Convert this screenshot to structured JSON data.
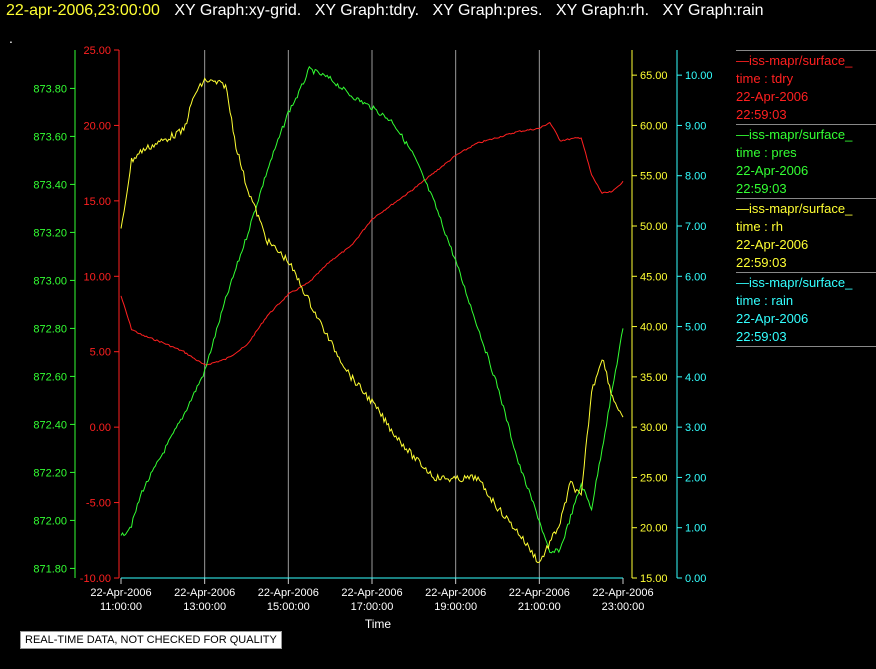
{
  "header": {
    "timestamp": "22-apr-2006,23:00:00",
    "graph_titles": [
      "XY Graph:xy-grid.",
      "XY Graph:tdry.",
      "XY Graph:pres.",
      "XY Graph:rh.",
      "XY Graph:rain"
    ]
  },
  "dot_text": ".",
  "disclaimer": "REAL-TIME DATA, NOT CHECKED FOR QUALITY",
  "legend": [
    {
      "source": "—iss-mapr/surface_",
      "label": "time : tdry",
      "date": "22-Apr-2006",
      "time": "22:59:03",
      "color": "#ff2020"
    },
    {
      "source": "—iss-mapr/surface_",
      "label": "time : pres",
      "date": "22-Apr-2006",
      "time": "22:59:03",
      "color": "#33ff33"
    },
    {
      "source": "—iss-mapr/surface_",
      "label": "time : rh",
      "date": "22-Apr-2006",
      "time": "22:59:03",
      "color": "#ffff33"
    },
    {
      "source": "—iss-mapr/surface_",
      "label": "time : rain",
      "date": "22-Apr-2006",
      "time": "22:59:03",
      "color": "#33ffff"
    }
  ],
  "chart_data": {
    "type": "line",
    "xlabel": "Time",
    "x_ticks": [
      {
        "date": "22-Apr-2006",
        "time": "11:00:00"
      },
      {
        "date": "22-Apr-2006",
        "time": "13:00:00"
      },
      {
        "date": "22-Apr-2006",
        "time": "15:00:00"
      },
      {
        "date": "22-Apr-2006",
        "time": "17:00:00"
      },
      {
        "date": "22-Apr-2006",
        "time": "19:00:00"
      },
      {
        "date": "22-Apr-2006",
        "time": "21:00:00"
      },
      {
        "date": "22-Apr-2006",
        "time": "23:00:00"
      }
    ],
    "xlim": [
      "22-Apr-2006 11:00:00",
      "22-Apr-2006 23:00:00"
    ],
    "grid": "vertical",
    "axes": {
      "pres": {
        "color": "#33ff33",
        "side": "left",
        "ylim": [
          871.76,
          873.96
        ],
        "ticks": [
          "871.80",
          "872.00",
          "872.20",
          "872.40",
          "872.60",
          "872.80",
          "873.00",
          "873.20",
          "873.40",
          "873.60",
          "873.80"
        ]
      },
      "tdry": {
        "color": "#ff2020",
        "side": "left",
        "ylim": [
          -10,
          25
        ],
        "ticks": [
          "-10.00",
          "-5.00",
          "0.00",
          "5.00",
          "10.00",
          "15.00",
          "20.00",
          "25.00"
        ]
      },
      "rh": {
        "color": "#ffff33",
        "side": "right",
        "ylim": [
          15.0,
          67.5
        ],
        "ticks": [
          "15.00",
          "20.00",
          "25.00",
          "30.00",
          "35.00",
          "40.00",
          "45.00",
          "50.00",
          "55.00",
          "60.00",
          "65.00"
        ]
      },
      "rain": {
        "color": "#33ffff",
        "side": "right",
        "ylim": [
          0,
          10.5
        ],
        "ticks": [
          "0.00",
          "1.00",
          "2.00",
          "3.00",
          "4.00",
          "5.00",
          "6.00",
          "7.00",
          "8.00",
          "9.00",
          "10.00"
        ]
      }
    },
    "series": [
      {
        "name": "time : tdry",
        "axis": "tdry",
        "color": "#ff2020",
        "x": [
          "11:00",
          "11:15",
          "11:30",
          "12:00",
          "12:30",
          "13:00",
          "13:30",
          "14:00",
          "14:30",
          "15:00",
          "15:30",
          "16:00",
          "16:30",
          "17:00",
          "17:30",
          "18:00",
          "18:30",
          "19:00",
          "19:30",
          "20:00",
          "20:30",
          "21:00",
          "21:15",
          "21:30",
          "22:00",
          "22:15",
          "22:30",
          "22:45",
          "23:00"
        ],
        "y": [
          8.7,
          6.5,
          6.1,
          5.6,
          5.0,
          4.1,
          4.5,
          5.4,
          7.4,
          8.8,
          9.6,
          11.0,
          12.0,
          13.8,
          14.8,
          15.8,
          16.9,
          18.0,
          18.8,
          19.2,
          19.6,
          19.8,
          20.2,
          19.0,
          19.2,
          16.7,
          15.5,
          15.6,
          16.3
        ]
      },
      {
        "name": "time : pres",
        "axis": "pres",
        "color": "#33ff33",
        "x": [
          "11:00",
          "11:15",
          "11:30",
          "12:00",
          "12:30",
          "13:00",
          "13:30",
          "14:00",
          "14:30",
          "15:00",
          "15:15",
          "15:30",
          "16:00",
          "16:30",
          "17:00",
          "17:30",
          "18:00",
          "18:30",
          "19:00",
          "19:30",
          "20:00",
          "20:30",
          "21:00",
          "21:15",
          "21:30",
          "22:00",
          "22:15",
          "22:30",
          "22:45",
          "23:00"
        ],
        "y": [
          871.93,
          871.98,
          872.12,
          872.28,
          872.44,
          872.62,
          872.92,
          873.18,
          873.46,
          873.7,
          873.78,
          873.88,
          873.84,
          873.77,
          873.72,
          873.66,
          873.52,
          873.32,
          873.08,
          872.82,
          872.56,
          872.24,
          872.0,
          871.86,
          871.88,
          872.15,
          872.05,
          872.3,
          872.55,
          872.8
        ]
      },
      {
        "name": "time : rh",
        "axis": "rh",
        "color": "#ffff33",
        "x": [
          "11:00",
          "11:15",
          "11:30",
          "12:00",
          "12:30",
          "12:45",
          "13:00",
          "13:30",
          "13:45",
          "14:00",
          "14:30",
          "15:00",
          "15:30",
          "16:00",
          "16:30",
          "17:00",
          "17:30",
          "18:00",
          "18:30",
          "19:00",
          "19:30",
          "20:00",
          "20:30",
          "21:00",
          "21:30",
          "21:45",
          "22:00",
          "22:15",
          "22:30",
          "22:45",
          "23:00"
        ],
        "y": [
          49.5,
          56.5,
          57.5,
          58.5,
          59.5,
          63.0,
          64.5,
          64.0,
          58.0,
          54.0,
          48.5,
          46.5,
          42.5,
          38.5,
          35.0,
          32.5,
          29.5,
          27.0,
          25.0,
          24.8,
          25.0,
          22.0,
          19.5,
          16.5,
          20.5,
          24.5,
          23.0,
          33.5,
          37.0,
          33.0,
          31.0
        ]
      },
      {
        "name": "time : rain",
        "axis": "rain",
        "color": "#33ffff",
        "x": [
          "11:00",
          "23:00"
        ],
        "y": [
          0.0,
          0.0
        ]
      }
    ]
  }
}
